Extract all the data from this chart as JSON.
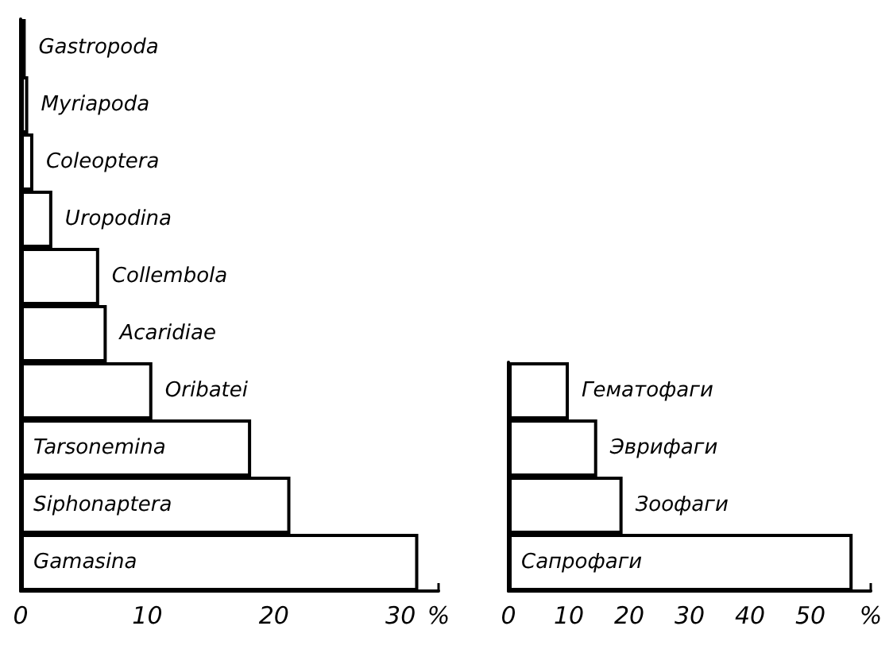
{
  "chart_data": [
    {
      "type": "bar",
      "orientation": "horizontal",
      "categories": [
        "Gastropoda",
        "Myriapoda",
        "Coleoptera",
        "Uropodina",
        "Collembola",
        "Acaridiae",
        "Oribatei",
        "Tarsonemina",
        "Siphonaptera",
        "Gamasina"
      ],
      "values": [
        0.4,
        0.6,
        1.0,
        2.5,
        6.2,
        6.8,
        10.4,
        18.2,
        21.3,
        31.4
      ],
      "color": "#ffffff",
      "xlim": [
        0,
        33
      ],
      "xticks": [
        0,
        10,
        20,
        30,
        {
          "value": 33,
          "label": "%"
        }
      ],
      "tick_labels": "x",
      "grid": false
    },
    {
      "type": "bar",
      "orientation": "horizontal",
      "categories": [
        "Гематофаги",
        "Эврифаги",
        "Зоофаги",
        "Сапрофаги"
      ],
      "values": [
        10,
        14.7,
        18.9,
        57
      ],
      "color": "#ffffff",
      "xlim": [
        0,
        60
      ],
      "xticks": [
        0,
        10,
        20,
        30,
        40,
        50,
        {
          "value": 60,
          "label": "%"
        }
      ],
      "tick_labels": "x",
      "grid": false
    }
  ]
}
